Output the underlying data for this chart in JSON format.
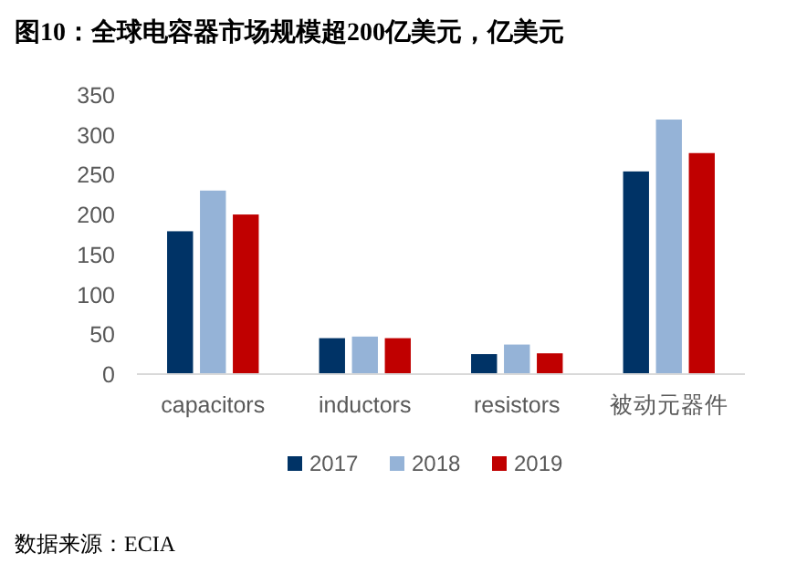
{
  "chart_data": {
    "type": "bar",
    "title": "图10：全球电容器市场规模超200亿美元，亿美元",
    "categories": [
      "capacitors",
      "inductors",
      "resistors",
      "被动元器件"
    ],
    "series": [
      {
        "name": "2017",
        "color": "#003366",
        "values": [
          180,
          46,
          26,
          255
        ]
      },
      {
        "name": "2018",
        "color": "#95b3d7",
        "values": [
          231,
          48,
          38,
          320
        ]
      },
      {
        "name": "2019",
        "color": "#c00000",
        "values": [
          201,
          46,
          27,
          278
        ]
      }
    ],
    "ylim": [
      0,
      350
    ],
    "yticks": [
      0,
      50,
      100,
      150,
      200,
      250,
      300,
      350
    ],
    "grid": false,
    "legend": "bottom",
    "annotations": [
      "数据来源：ECIA"
    ]
  }
}
